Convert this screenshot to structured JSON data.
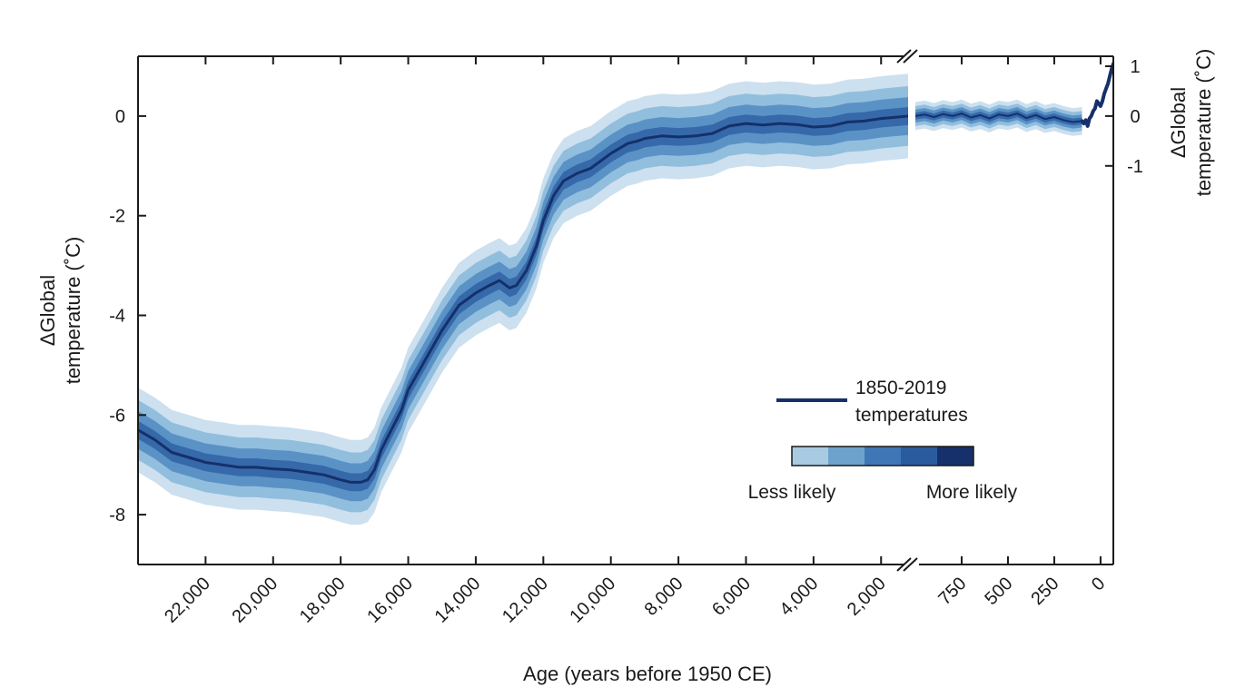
{
  "chart_data": {
    "type": "area",
    "xlabel": "Age (years before 1950 CE)",
    "ylabel_left": [
      "ΔGlobal",
      "temperature (˚C)"
    ],
    "ylabel_right": [
      "ΔGlobal",
      "temperature (˚C)"
    ],
    "left_panel": {
      "xlim": [
        24000,
        1200
      ],
      "ylim": [
        -9,
        1.2
      ],
      "x_ticks": [
        22000,
        20000,
        18000,
        16000,
        14000,
        12000,
        10000,
        8000,
        6000,
        4000,
        2000
      ],
      "x_tick_labels": [
        "22,000",
        "20,000",
        "18,000",
        "16,000",
        "14,000",
        "12,000",
        "10,000",
        "8,000",
        "6,000",
        "4,000",
        "2,000"
      ],
      "y_ticks": [
        0,
        -2,
        -4,
        -6,
        -8
      ],
      "y_tick_labels": [
        "0",
        "-2",
        "-4",
        "-6",
        "-8"
      ]
    },
    "right_panel": {
      "xlim": [
        1000,
        -69
      ],
      "ylim": [
        -9,
        1.2
      ],
      "x_ticks": [
        750,
        500,
        250,
        0
      ],
      "x_tick_labels": [
        "750",
        "500",
        "250",
        "0"
      ],
      "y_ticks": [
        1,
        0,
        -1
      ],
      "y_tick_labels": [
        "1",
        "0",
        "-1"
      ]
    },
    "band_half_widths": [
      0.85,
      0.6,
      0.38,
      0.18
    ],
    "reconstruction": {
      "x": [
        24000,
        23500,
        23000,
        22500,
        22000,
        21500,
        21000,
        20500,
        20000,
        19500,
        19000,
        18500,
        18000,
        17700,
        17400,
        17200,
        17000,
        16800,
        16500,
        16200,
        16000,
        15500,
        15000,
        14500,
        14000,
        13600,
        13300,
        13000,
        12800,
        12500,
        12200,
        12000,
        11700,
        11400,
        11000,
        10600,
        10300,
        10000,
        9500,
        9200,
        9000,
        8500,
        8000,
        7500,
        7000,
        6500,
        6000,
        5500,
        5000,
        4500,
        4000,
        3500,
        3000,
        2500,
        2000,
        1500,
        1200
      ],
      "y": [
        -6.3,
        -6.5,
        -6.75,
        -6.85,
        -6.95,
        -7.0,
        -7.05,
        -7.05,
        -7.08,
        -7.1,
        -7.15,
        -7.2,
        -7.3,
        -7.35,
        -7.35,
        -7.3,
        -7.1,
        -6.7,
        -6.3,
        -5.9,
        -5.5,
        -4.9,
        -4.3,
        -3.8,
        -3.55,
        -3.4,
        -3.3,
        -3.45,
        -3.4,
        -3.1,
        -2.6,
        -2.1,
        -1.6,
        -1.3,
        -1.15,
        -1.05,
        -0.9,
        -0.75,
        -0.55,
        -0.5,
        -0.45,
        -0.4,
        -0.42,
        -0.4,
        -0.35,
        -0.2,
        -0.15,
        -0.18,
        -0.15,
        -0.17,
        -0.22,
        -0.2,
        -0.12,
        -0.1,
        -0.05,
        -0.02,
        0.0
      ]
    },
    "reconstruction_recent": {
      "x": [
        1000,
        950,
        900,
        850,
        800,
        750,
        700,
        650,
        600,
        550,
        500,
        450,
        400,
        350,
        300,
        250,
        200,
        150,
        100
      ],
      "y": [
        0.0,
        0.03,
        -0.02,
        0.04,
        0.0,
        0.05,
        -0.03,
        0.02,
        -0.05,
        0.03,
        0.0,
        0.05,
        -0.04,
        0.02,
        -0.06,
        -0.02,
        -0.08,
        -0.12,
        -0.1
      ]
    },
    "observed": {
      "x": [
        100,
        90,
        80,
        70,
        60,
        50,
        40,
        30,
        20,
        10,
        0,
        -10,
        -20,
        -30,
        -40,
        -50,
        -60,
        -69
      ],
      "y": [
        -0.1,
        -0.15,
        -0.08,
        -0.2,
        -0.05,
        0.0,
        0.1,
        0.15,
        0.3,
        0.25,
        0.2,
        0.3,
        0.45,
        0.55,
        0.65,
        0.8,
        0.95,
        1.05
      ]
    },
    "legend": {
      "line_label": [
        "1850-2019",
        "temperatures"
      ],
      "scale_low": "Less likely",
      "scale_high": "More likely",
      "colors": [
        "#a8cbe2",
        "#6da2cc",
        "#3f77b6",
        "#2a5b9e",
        "#15306a"
      ],
      "position": "lower-right"
    },
    "colors": {
      "line": "#15306a",
      "bands": [
        "#cce0ef",
        "#92bede",
        "#5b92c6",
        "#3569aa"
      ]
    }
  }
}
